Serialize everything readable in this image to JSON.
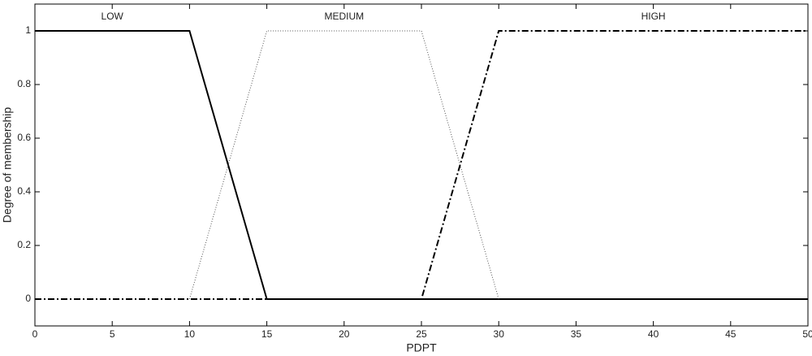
{
  "chart_data": {
    "type": "line",
    "x_label": "PDPT",
    "y_label": "Degree of membership",
    "xlim": [
      0,
      50
    ],
    "ylim": [
      -0.1,
      1.1
    ],
    "xticks": [
      0,
      5,
      10,
      15,
      20,
      25,
      30,
      35,
      40,
      45,
      50
    ],
    "yticks": [
      0,
      0.2,
      0.4,
      0.6,
      0.8,
      1
    ],
    "grid": false,
    "series": [
      {
        "name": "LOW",
        "color": "#000000",
        "linestyle": "solid",
        "x": [
          0,
          10,
          15,
          50
        ],
        "values": [
          1,
          1,
          0,
          0
        ]
      },
      {
        "name": "MEDIUM",
        "color": "#555555",
        "linestyle": "dotted",
        "x": [
          10,
          15,
          25,
          30
        ],
        "values": [
          0,
          1,
          1,
          0
        ]
      },
      {
        "name": "HIGH",
        "color": "#000000",
        "linestyle": "dashdot",
        "x": [
          0,
          25,
          30,
          50
        ],
        "values": [
          0,
          0,
          1,
          1
        ]
      }
    ]
  }
}
